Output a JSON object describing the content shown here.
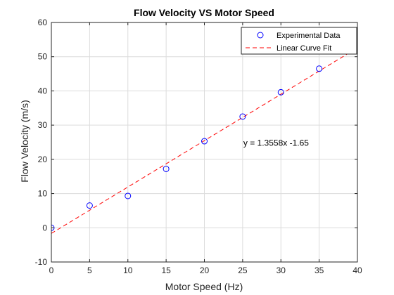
{
  "chart_data": {
    "type": "scatter",
    "title": "Flow Velocity VS Motor Speed",
    "xlabel": "Motor Speed (Hz)",
    "ylabel": "Flow Velocity (m/s)",
    "xlim": [
      0,
      40
    ],
    "ylim": [
      -10,
      60
    ],
    "xticks": [
      "0",
      "5",
      "10",
      "15",
      "20",
      "25",
      "30",
      "35",
      "40"
    ],
    "yticks": [
      "-10",
      "0",
      "10",
      "20",
      "30",
      "40",
      "50",
      "60"
    ],
    "grid": true,
    "legend_placement": "top-right",
    "series": [
      {
        "name": "Experimental Data",
        "kind": "markers",
        "marker": "circle",
        "color": "#0000ff",
        "x": [
          0,
          5,
          10,
          15,
          20,
          25,
          30,
          35,
          40
        ],
        "y": [
          0,
          6.5,
          9.3,
          17.2,
          25.3,
          32.5,
          39.6,
          46.5,
          52.8
        ]
      },
      {
        "name": "Linear Curve Fit",
        "kind": "line",
        "style": "dashed",
        "color": "#ff0000",
        "slope": 1.3558,
        "intercept": -1.65
      }
    ],
    "annotation": {
      "text": "y = 1.3558x -1.65",
      "x": 25,
      "y": 24
    }
  }
}
